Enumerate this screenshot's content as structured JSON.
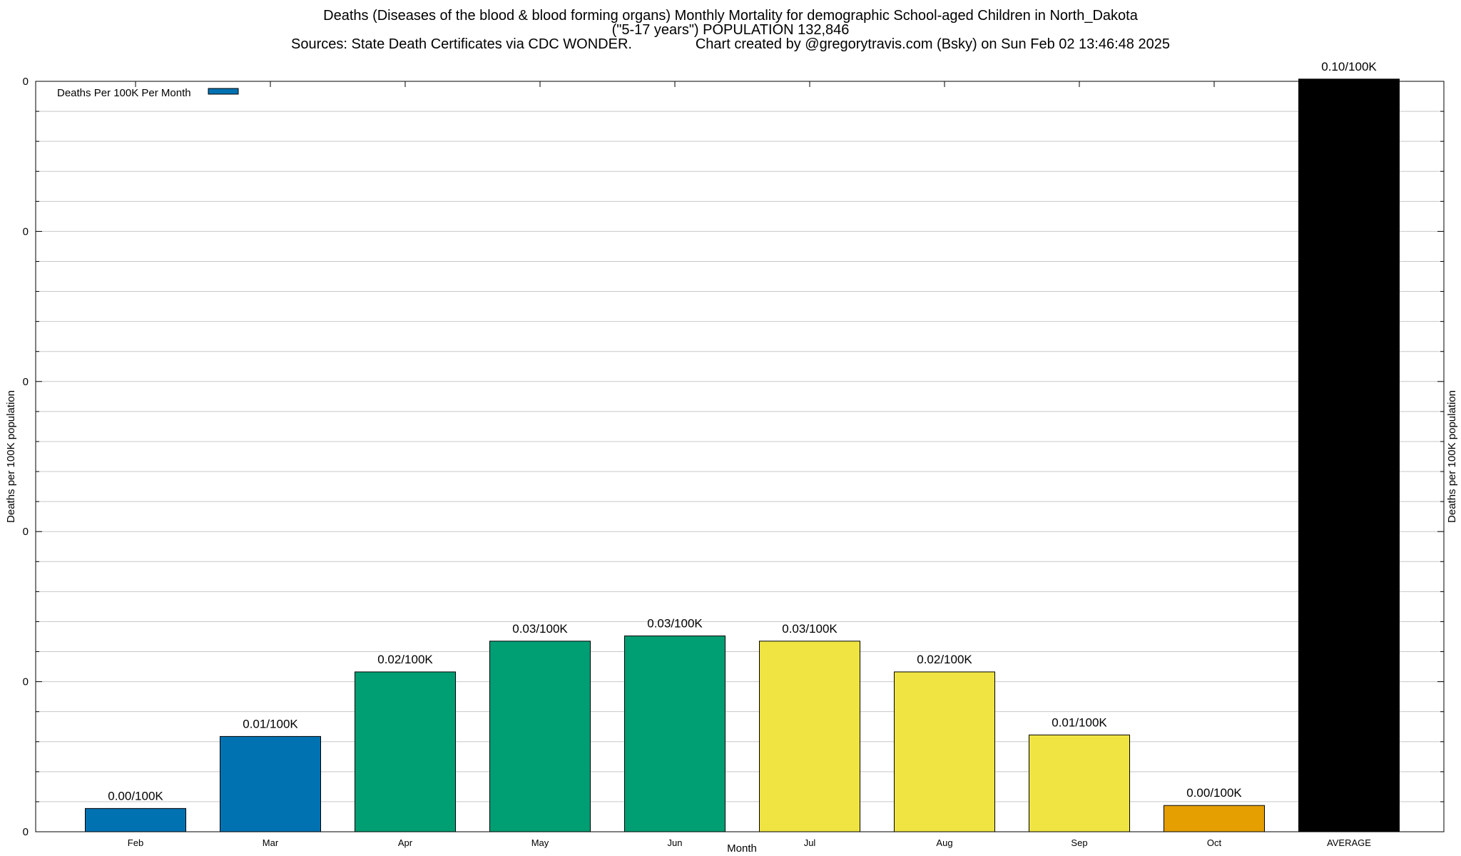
{
  "header": {
    "title_line1": "Deaths (Diseases of the blood & blood forming organs) Monthly Mortality for demographic School-aged Children in North_Dakota",
    "title_line2": "(\"5-17 years\") POPULATION 132,846",
    "title_line3": "Sources: State Death Certificates via CDC WONDER.                Chart created by @gregorytravis.com (Bsky) on Sun Feb 02 13:46:48 2025"
  },
  "chart_data": {
    "type": "bar",
    "title": "Deaths (Diseases of the blood & blood forming organs) Monthly Mortality for demographic School-aged Children in North_Dakota",
    "xlabel": "Month",
    "ylabel": "Deaths per 100K population",
    "y2label": "Deaths per 100K population",
    "legend": {
      "label": "Deaths Per 100K Per Month",
      "placement": "top-left",
      "color": "#0072b2"
    },
    "categories": [
      "Feb",
      "Mar",
      "Apr",
      "May",
      "Jun",
      "Jul",
      "Aug",
      "Sep",
      "Oct",
      "AVERAGE"
    ],
    "values": [
      0.0031,
      0.0127,
      0.0213,
      0.0254,
      0.0261,
      0.0254,
      0.0213,
      0.0129,
      0.0035,
      0.1003
    ],
    "value_labels": [
      "0.00/100K",
      "0.01/100K",
      "0.02/100K",
      "0.03/100K",
      "0.03/100K",
      "0.03/100K",
      "0.02/100K",
      "0.01/100K",
      "0.00/100K",
      "0.10/100K"
    ],
    "colors": [
      "#0072b2",
      "#0072b2",
      "#009e73",
      "#009e73",
      "#009e73",
      "#f0e442",
      "#f0e442",
      "#f0e442",
      "#e69f00",
      "#000000"
    ],
    "ylim": [
      0,
      0.1
    ],
    "yticks": [
      0,
      0.02,
      0.04,
      0.06,
      0.08,
      0.1
    ],
    "ytick_labels": [
      "0",
      "0",
      "0",
      "0",
      "0",
      "0"
    ],
    "grid": true
  }
}
